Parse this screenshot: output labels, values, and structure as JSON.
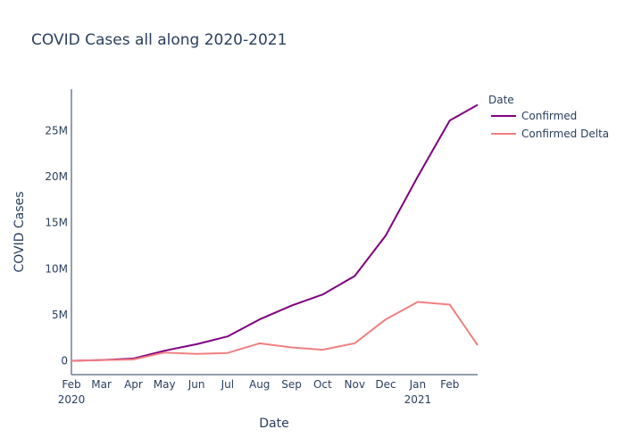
{
  "chart_data": {
    "type": "line",
    "title": "COVID Cases all along 2020-2021",
    "xlabel": "Date",
    "ylabel": "COVID Cases",
    "legend_title": "Date",
    "legend_position": "right",
    "grid": false,
    "x": [
      "2020-02-01",
      "2020-03-01",
      "2020-04-01",
      "2020-05-01",
      "2020-06-01",
      "2020-07-01",
      "2020-08-01",
      "2020-09-01",
      "2020-10-01",
      "2020-11-01",
      "2020-12-01",
      "2021-01-01",
      "2021-02-01",
      "2021-02-28"
    ],
    "xlim": [
      "2020-02-01",
      "2021-02-28"
    ],
    "ylim": [
      -1500000,
      29500000
    ],
    "x_ticks": [
      {
        "date": "2020-02-01",
        "label": "Feb",
        "sub": "2020"
      },
      {
        "date": "2020-03-01",
        "label": "Mar",
        "sub": ""
      },
      {
        "date": "2020-04-01",
        "label": "Apr",
        "sub": ""
      },
      {
        "date": "2020-05-01",
        "label": "May",
        "sub": ""
      },
      {
        "date": "2020-06-01",
        "label": "Jun",
        "sub": ""
      },
      {
        "date": "2020-07-01",
        "label": "Jul",
        "sub": ""
      },
      {
        "date": "2020-08-01",
        "label": "Aug",
        "sub": ""
      },
      {
        "date": "2020-09-01",
        "label": "Sep",
        "sub": ""
      },
      {
        "date": "2020-10-01",
        "label": "Oct",
        "sub": ""
      },
      {
        "date": "2020-11-01",
        "label": "Nov",
        "sub": ""
      },
      {
        "date": "2020-12-01",
        "label": "Dec",
        "sub": ""
      },
      {
        "date": "2021-01-01",
        "label": "Jan",
        "sub": "2021"
      },
      {
        "date": "2021-02-01",
        "label": "Feb",
        "sub": ""
      }
    ],
    "y_ticks": [
      {
        "value": 0,
        "label": "0"
      },
      {
        "value": 5000000,
        "label": "5M"
      },
      {
        "value": 10000000,
        "label": "10M"
      },
      {
        "value": 15000000,
        "label": "15M"
      },
      {
        "value": 20000000,
        "label": "20M"
      },
      {
        "value": 25000000,
        "label": "25M"
      }
    ],
    "series": [
      {
        "name": "Confirmed",
        "color": "#800080",
        "values": [
          10,
          90000,
          240000,
          1100000,
          1800000,
          2650000,
          4500000,
          6000000,
          7200000,
          9200000,
          13600000,
          20000000,
          26100000,
          27800000
        ]
      },
      {
        "name": "Confirmed Delta",
        "color": "#f08080",
        "values": [
          10,
          80000,
          150000,
          900000,
          750000,
          850000,
          1900000,
          1450000,
          1200000,
          1900000,
          4500000,
          6400000,
          6100000,
          1700000
        ]
      }
    ]
  }
}
